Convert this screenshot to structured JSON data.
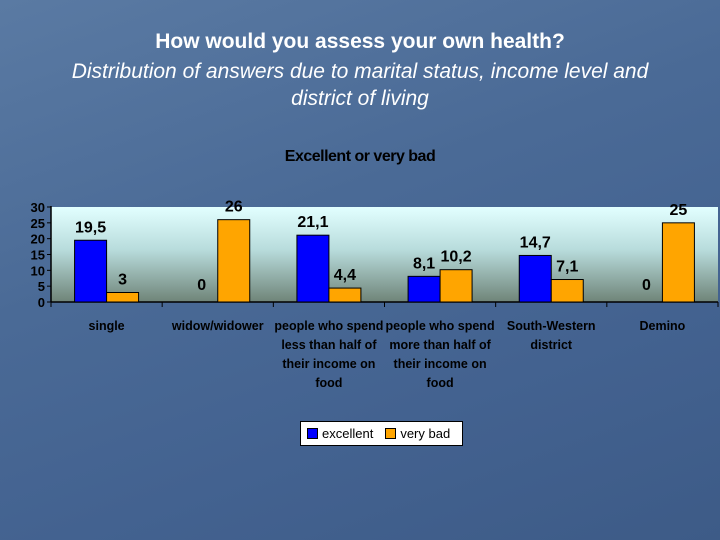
{
  "slide": {
    "title": "How would you assess your own health?",
    "subtitle": "Distribution of answers due to marital status, income level and district of living"
  },
  "chart_data": {
    "type": "bar",
    "title": "Excellent or very bad",
    "categories": [
      "single",
      "widow/widower",
      "people who spend less than half of their income on food",
      "people who spend more than half of their income on food",
      "South-Western district",
      "Demino"
    ],
    "series": [
      {
        "name": "excellent",
        "color": "#0000ff",
        "values": [
          19.5,
          0,
          21.1,
          8.1,
          14.7,
          0
        ],
        "labels": [
          "19,5",
          "0",
          "21,1",
          "8,1",
          "14,7",
          "0"
        ]
      },
      {
        "name": "very bad",
        "color": "#ffa500",
        "values": [
          3,
          26,
          4.4,
          10.2,
          7.1,
          25
        ],
        "labels": [
          "3",
          "26",
          "4,4",
          "10,2",
          "7,1",
          "25"
        ]
      }
    ],
    "ylim": [
      0,
      30
    ],
    "yticks": [
      "0",
      "5",
      "10",
      "15",
      "20",
      "25",
      "30"
    ],
    "legend": "bottom",
    "xlabel": "",
    "ylabel": ""
  }
}
